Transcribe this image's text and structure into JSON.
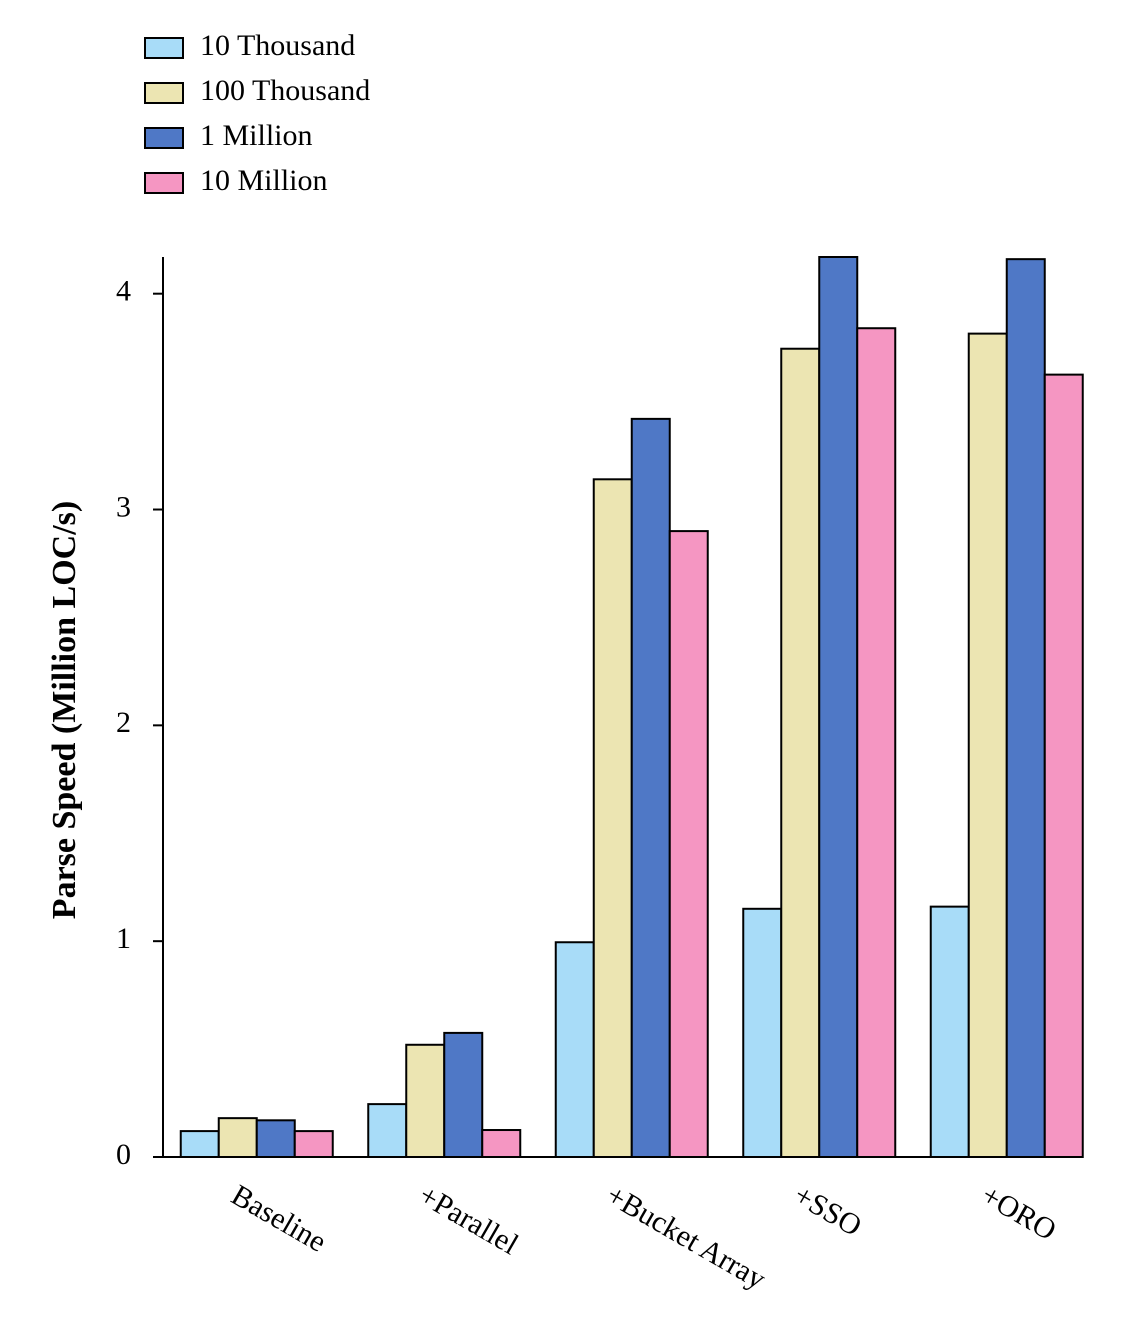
{
  "chart_data": {
    "type": "bar",
    "y_label": "Parse Speed (Million LOC/s)",
    "categories": [
      "Baseline",
      "+Parallel",
      "+Bucket Array",
      "+SSO",
      "+ORO"
    ],
    "series": [
      {
        "name": "10 Thousand",
        "color": "#a8dcf8",
        "values": [
          0.12,
          0.245,
          0.995,
          1.15,
          1.16
        ]
      },
      {
        "name": "100 Thousand",
        "color": "#ece5b2",
        "values": [
          0.18,
          0.52,
          3.14,
          3.745,
          3.815
        ]
      },
      {
        "name": "1 Million",
        "color": "#4f78c6",
        "values": [
          0.17,
          0.575,
          3.42,
          4.17,
          4.16
        ]
      },
      {
        "name": "10 Million",
        "color": "#f596c2",
        "values": [
          0.12,
          0.125,
          2.9,
          3.84,
          3.625
        ]
      }
    ],
    "ylim": [
      0,
      4.17
    ],
    "yticks": [
      0,
      1,
      2,
      3,
      4
    ],
    "grid": false,
    "legend": "top-left"
  }
}
